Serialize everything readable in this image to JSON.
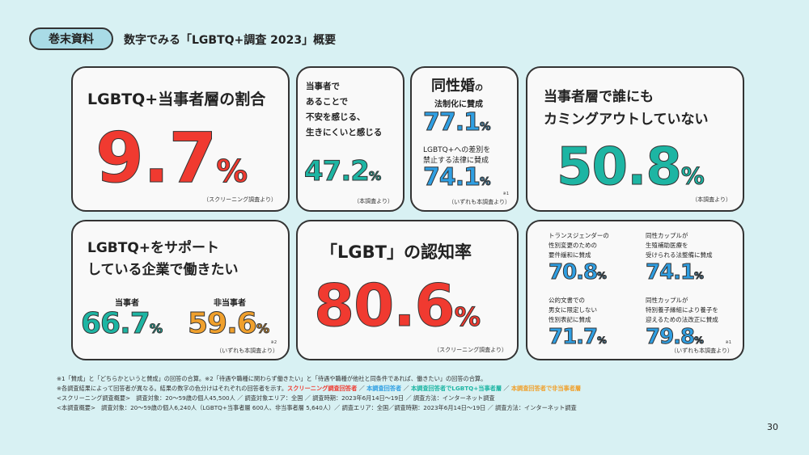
{
  "header": {
    "tag": "巻末資料",
    "title": "数字でみる「LGBTQ+調査 2023」概要"
  },
  "colors": {
    "screening": "#f03a30",
    "main": "#2f9fe3",
    "lgbtq": "#1db5a3",
    "non": "#f0a02c"
  },
  "cards": {
    "ratio": {
      "title": "LGBTQ+当事者層の割合",
      "value": "9.7",
      "unit": "%",
      "source": "（スクリーニング調査より）"
    },
    "anxiety": {
      "l1": "当事者で",
      "l2": "あることで",
      "l3": "不安を感じる、",
      "l4": "生きにくいと感じる",
      "value": "47.2",
      "unit": "%",
      "source": "（本調査より）"
    },
    "marriage": {
      "big": "同性婚",
      "small": "の",
      "l2": "法制化に賛成",
      "value1": "77.1",
      "unit": "%",
      "l3": "LGBTQ+への差別を",
      "l4": "禁止する法律に賛成",
      "value2": "74.1",
      "note": "※1",
      "source": "（いずれも本調査より）"
    },
    "comingout": {
      "l1": "当事者層で誰にも",
      "l2": "カミングアウトしていない",
      "value": "50.8",
      "unit": "%",
      "source": "（本調査より）"
    },
    "support": {
      "l1": "LGBTQ+をサポート",
      "l2": "している企業で働きたい",
      "label1": "当事者",
      "value1": "66.7",
      "label2": "非当事者",
      "value2": "59.6",
      "unit": "%",
      "note": "※2",
      "source": "（いずれも本調査より）"
    },
    "awareness": {
      "title": "「LGBT」の認知率",
      "value": "80.6",
      "unit": "%",
      "source": "（スクリーニング調査より）"
    },
    "policies": {
      "items": [
        {
          "l1": "トランスジェンダーの",
          "l2": "性別変更のための",
          "l3": "要件緩和に賛成",
          "value": "70.8"
        },
        {
          "l1": "同性カップルが",
          "l2": "生殖補助医療を",
          "l3": "受けられる法整備に賛成",
          "value": "74.1"
        },
        {
          "l1": "公的文書での",
          "l2": "男女に限定しない",
          "l3": "性別表記に賛成",
          "value": "71.7"
        },
        {
          "l1": "同性カップルが",
          "l2": "特別養子縁組により養子を",
          "l3": "迎えるための法改正に賛成",
          "value": "79.8"
        }
      ],
      "unit": "%",
      "note": "※1",
      "source": "（いずれも本調査より）"
    }
  },
  "notes": {
    "n1": "※1「賛成」と「どちらかというと賛成」の回答の合算。※2「待遇や職種に関わらず働きたい」と「待遇や職種が他社と同条件であれば、働きたい」の回答の合算。",
    "n2": "※各調査結果によって回答者が異なる。結果の数字の色分けはそれぞれの回答者を示す。",
    "legend": [
      "スクリーニング調査回答者",
      "本調査回答者",
      "本調査回答者でLGBTQ+当事者層",
      "本調査回答者で非当事者層"
    ],
    "n3": "<スクリーニング調査概要>　調査対象：20〜59歳の個人45,500人 ／ 調査対象エリア：全国 ／ 調査時期：2023年6月14日〜19日 ／ 調査方法：インターネット調査",
    "n4": "<本調査概要>　調査対象：20〜59歳の個人6,240人（LGBTQ+当事者層 600人、非当事者層 5,640人）／ 調査エリア：全国／調査時期：2023年6月14日〜19日 ／ 調査方法：インターネット調査"
  },
  "page_number": "30"
}
